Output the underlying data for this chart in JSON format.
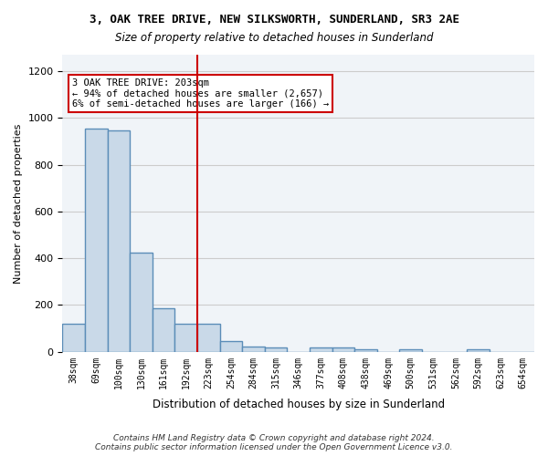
{
  "title1": "3, OAK TREE DRIVE, NEW SILKSWORTH, SUNDERLAND, SR3 2AE",
  "title2": "Size of property relative to detached houses in Sunderland",
  "xlabel": "Distribution of detached houses by size in Sunderland",
  "ylabel": "Number of detached properties",
  "categories": [
    "38sqm",
    "69sqm",
    "100sqm",
    "130sqm",
    "161sqm",
    "192sqm",
    "223sqm",
    "254sqm",
    "284sqm",
    "315sqm",
    "346sqm",
    "377sqm",
    "408sqm",
    "438sqm",
    "469sqm",
    "500sqm",
    "531sqm",
    "562sqm",
    "592sqm",
    "623sqm",
    "654sqm"
  ],
  "values": [
    120,
    955,
    948,
    425,
    185,
    120,
    120,
    45,
    22,
    20,
    0,
    18,
    20,
    10,
    0,
    10,
    0,
    0,
    10,
    0,
    0
  ],
  "bar_color": "#c9d9e8",
  "bar_edge_color": "#5b8db8",
  "bar_linewidth": 1.0,
  "grid_color": "#cccccc",
  "annotation_text": "3 OAK TREE DRIVE: 203sqm\n← 94% of detached houses are smaller (2,657)\n6% of semi-detached houses are larger (166) →",
  "annotation_box_color": "#ffffff",
  "annotation_box_edge": "#cc0000",
  "vline_x": 5.5,
  "vline_color": "#cc0000",
  "ylim": [
    0,
    1270
  ],
  "footer": "Contains HM Land Registry data © Crown copyright and database right 2024.\nContains public sector information licensed under the Open Government Licence v3.0.",
  "background_color": "#f0f4f8"
}
